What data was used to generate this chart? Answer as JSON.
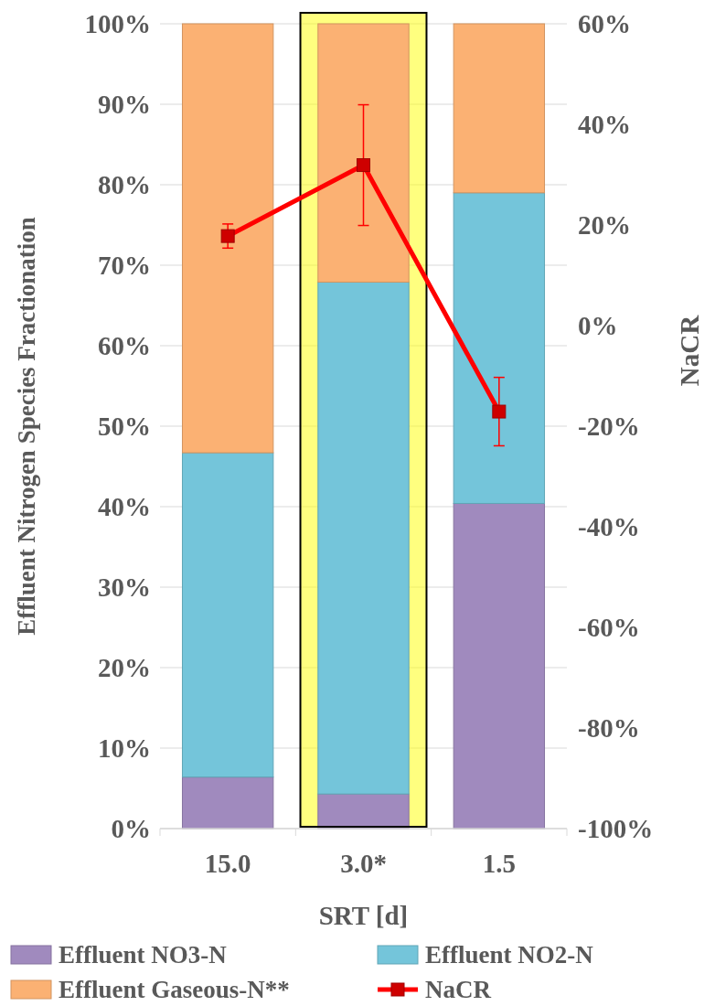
{
  "chart_data": {
    "type": "bar",
    "stacked": true,
    "xlabel": "SRT [d]",
    "ylabel": "Effluent Nitrogen Species Fractionation",
    "y2label": "NaCR",
    "categories": [
      "15.0",
      "3.0*",
      "1.5"
    ],
    "series": [
      {
        "name": "Effluent NO3-N",
        "color": "#a08abe",
        "values": [
          6.4,
          4.3,
          40.4
        ]
      },
      {
        "name": "Effluent NO2-N",
        "color": "#74c5da",
        "values": [
          40.3,
          63.6,
          38.6
        ]
      },
      {
        "name": "Effluent Gaseous-N**",
        "color": "#fbb173",
        "values": [
          53.3,
          32.1,
          21.0
        ]
      },
      {
        "name": "NaCR",
        "type": "line",
        "axis": "y2",
        "color": "#ff0000",
        "values": [
          17.8,
          31.9,
          -17.1
        ],
        "errors": [
          2.4,
          12,
          6.8
        ]
      }
    ],
    "ylim": [
      0,
      100
    ],
    "yticks": [
      {
        "value": 0,
        "label": "0%"
      },
      {
        "value": 10,
        "label": "10%"
      },
      {
        "value": 20,
        "label": "20%"
      },
      {
        "value": 30,
        "label": "30%"
      },
      {
        "value": 40,
        "label": "40%"
      },
      {
        "value": 50,
        "label": "50%"
      },
      {
        "value": 60,
        "label": "60%"
      },
      {
        "value": 70,
        "label": "70%"
      },
      {
        "value": 80,
        "label": "80%"
      },
      {
        "value": 90,
        "label": "90%"
      },
      {
        "value": 100,
        "label": "100%"
      }
    ],
    "y2lim": [
      -100,
      60
    ],
    "y2ticks": [
      {
        "value": -100,
        "label": "-100%"
      },
      {
        "value": -80,
        "label": "-80%"
      },
      {
        "value": -60,
        "label": "-60%"
      },
      {
        "value": -40,
        "label": "-40%"
      },
      {
        "value": -20,
        "label": "-20%"
      },
      {
        "value": 0,
        "label": "0%"
      },
      {
        "value": 20,
        "label": "20%"
      },
      {
        "value": 40,
        "label": "40%"
      },
      {
        "value": 60,
        "label": "60%"
      }
    ],
    "bands": [
      {
        "axis": "x",
        "from": "3.0*",
        "to": "3.0*",
        "color": "#ffff00"
      }
    ],
    "grid": "y",
    "legend": "bottom",
    "marker": "square",
    "line_style": "solid"
  }
}
